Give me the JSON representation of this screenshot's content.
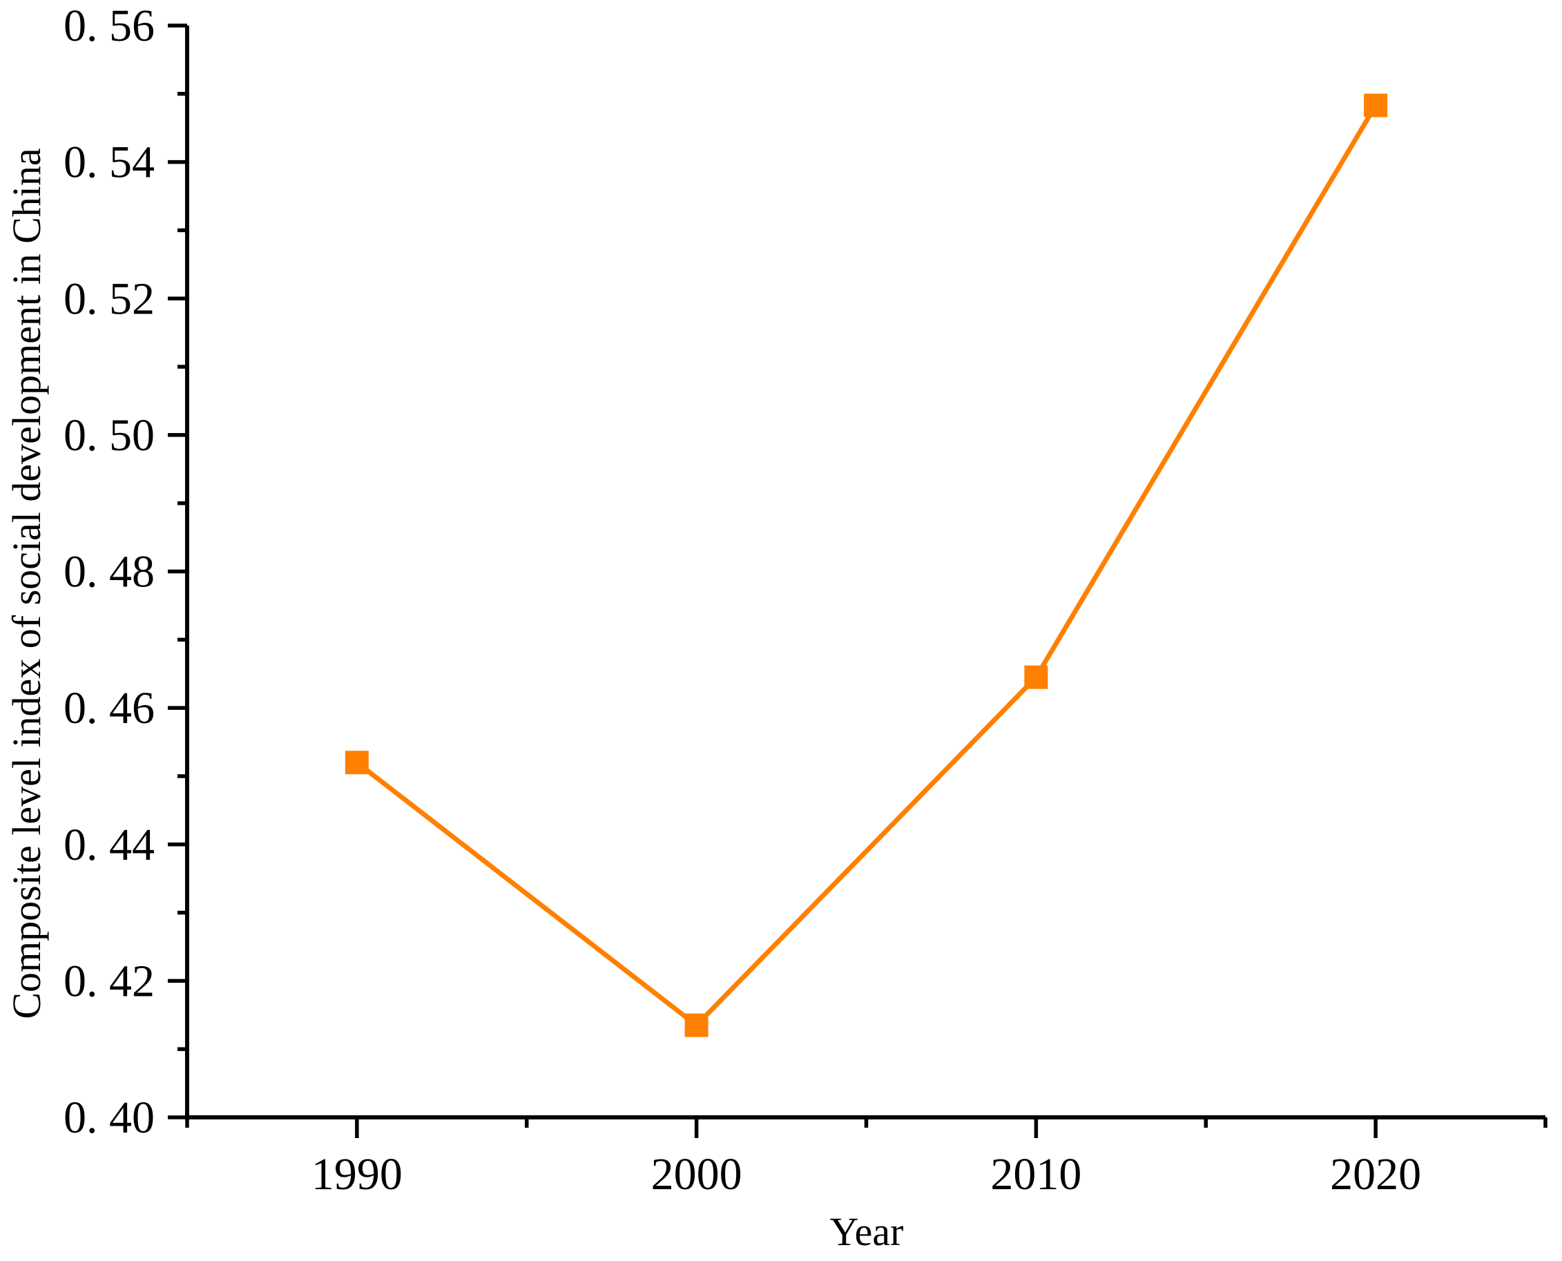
{
  "chart_data": {
    "type": "line",
    "title": "",
    "xlabel": "Year",
    "ylabel": "Composite level index of social development in China",
    "x": [
      1990,
      2000,
      2010,
      2020
    ],
    "values": [
      0.452,
      0.4135,
      0.4645,
      0.5483
    ],
    "series_name": "Composite level index of social development in China",
    "xlim": [
      1985,
      2025
    ],
    "ylim": [
      0.4,
      0.56
    ],
    "x_major_ticks": [
      1990,
      2000,
      2010,
      2020
    ],
    "x_minor_ticks": [
      1985,
      1995,
      2005,
      2015,
      2025
    ],
    "x_tick_labels": [
      "1990",
      "2000",
      "2010",
      "2020"
    ],
    "y_major_ticks": [
      0.4,
      0.42,
      0.44,
      0.46,
      0.48,
      0.5,
      0.52,
      0.54,
      0.56
    ],
    "y_minor_ticks": [
      0.41,
      0.43,
      0.45,
      0.47,
      0.49,
      0.51,
      0.53,
      0.55
    ],
    "y_tick_labels": [
      "0. 40",
      "0. 42",
      "0. 44",
      "0. 46",
      "0. 48",
      "0. 50",
      "0. 52",
      "0. 54",
      "0. 56"
    ],
    "grid": false,
    "legend_position": "none",
    "line_color": "#ff8000",
    "marker": "square",
    "axis_color": "#000000",
    "background_color": "#ffffff"
  }
}
